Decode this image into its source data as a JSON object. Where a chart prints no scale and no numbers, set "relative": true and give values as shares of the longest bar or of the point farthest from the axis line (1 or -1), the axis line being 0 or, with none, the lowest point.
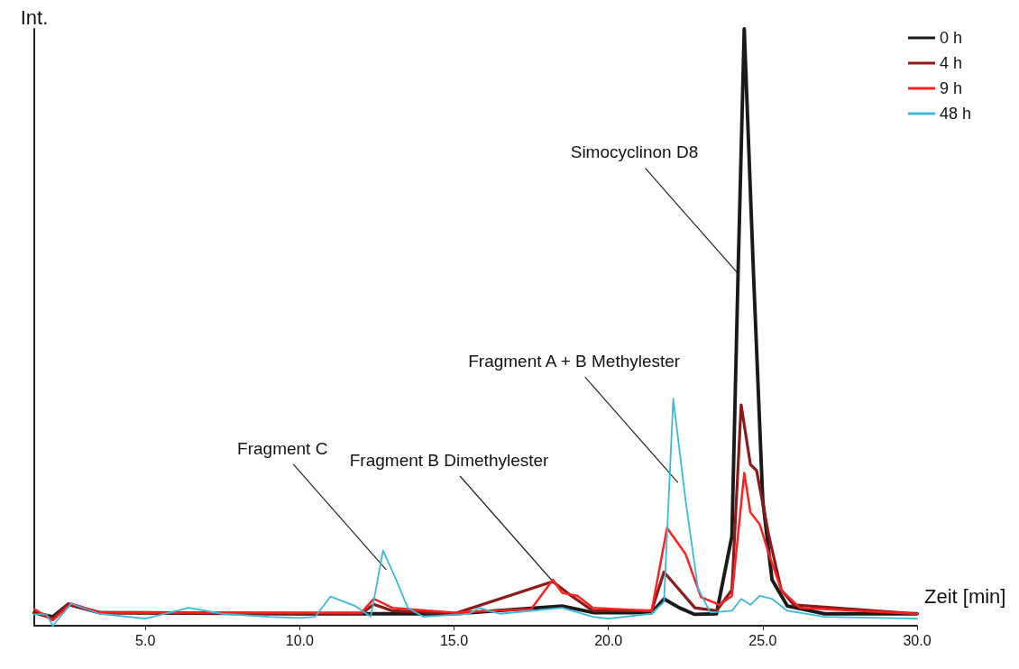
{
  "chart_data": {
    "type": "line",
    "relative": true,
    "xlabel": "Zeit [min]",
    "ylabel": "Int.",
    "xlim": [
      1.4,
      30
    ],
    "xticks": [
      {
        "value": 5,
        "label": "5.0"
      },
      {
        "value": 10,
        "label": "10.0"
      },
      {
        "value": 15,
        "label": "15.0"
      },
      {
        "value": 20,
        "label": "20.0"
      },
      {
        "value": 25,
        "label": "25.0"
      },
      {
        "value": 30,
        "label": "30.0"
      }
    ],
    "legend": "top right",
    "grid": false,
    "marker": "none",
    "line_style": "solid",
    "series": [
      {
        "name": "0 h",
        "color": "#1a1a1a",
        "x": [
          1.4,
          2.0,
          2.5,
          3.5,
          10,
          15,
          18.5,
          19.5,
          21.4,
          21.8,
          22.3,
          22.8,
          23.5,
          24.0,
          24.2,
          24.4,
          24.7,
          25.0,
          25.3,
          25.8,
          27,
          30
        ],
        "values": [
          0.022,
          0.015,
          0.036,
          0.022,
          0.02,
          0.02,
          0.033,
          0.022,
          0.022,
          0.045,
          0.03,
          0.019,
          0.02,
          0.15,
          0.59,
          1.0,
          0.59,
          0.21,
          0.077,
          0.033,
          0.02,
          0.02
        ]
      },
      {
        "name": "4 h",
        "color": "#8b1a1a",
        "x": [
          1.4,
          2.0,
          2.5,
          3.5,
          10,
          12.0,
          12.4,
          13.0,
          15,
          18.2,
          18.8,
          19.5,
          21.4,
          21.8,
          22.3,
          22.8,
          23.5,
          24.0,
          24.3,
          24.6,
          24.8,
          25.2,
          25.6,
          26.0,
          30
        ],
        "values": [
          0.022,
          0.012,
          0.036,
          0.022,
          0.02,
          0.02,
          0.036,
          0.025,
          0.02,
          0.074,
          0.05,
          0.025,
          0.025,
          0.09,
          0.06,
          0.03,
          0.025,
          0.06,
          0.37,
          0.27,
          0.26,
          0.15,
          0.06,
          0.035,
          0.02
        ]
      },
      {
        "name": "9 h",
        "color": "#ff2020",
        "x": [
          1.4,
          2.0,
          2.6,
          3.5,
          10,
          12.0,
          12.4,
          13.0,
          15,
          17.5,
          18.2,
          18.5,
          19.0,
          19.5,
          21.4,
          21.9,
          22.5,
          23.0,
          23.6,
          24.0,
          24.4,
          24.6,
          24.9,
          25.2,
          25.6,
          26.2,
          30
        ],
        "values": [
          0.028,
          0.009,
          0.037,
          0.022,
          0.022,
          0.022,
          0.045,
          0.03,
          0.022,
          0.028,
          0.077,
          0.055,
          0.05,
          0.03,
          0.025,
          0.164,
          0.12,
          0.048,
          0.035,
          0.05,
          0.256,
          0.19,
          0.17,
          0.12,
          0.06,
          0.03,
          0.02
        ]
      },
      {
        "name": "48 h",
        "color": "#3bb9d8",
        "x": [
          1.4,
          1.8,
          2.0,
          2.6,
          3.5,
          5.0,
          6.4,
          7.5,
          9.0,
          10.0,
          10.5,
          11.0,
          11.8,
          12.3,
          12.7,
          13.1,
          13.5,
          14.0,
          15.5,
          15.8,
          16.5,
          18.5,
          19.5,
          20.0,
          21.4,
          21.8,
          22.1,
          22.5,
          22.9,
          23.3,
          24.0,
          24.3,
          24.6,
          24.9,
          25.3,
          25.8,
          27,
          30
        ],
        "values": [
          0.019,
          0.019,
          0,
          0.037,
          0.02,
          0.012,
          0.03,
          0.02,
          0.015,
          0.013,
          0.015,
          0.049,
          0.033,
          0.015,
          0.126,
          0.08,
          0.03,
          0.015,
          0.02,
          0.03,
          0.02,
          0.03,
          0.015,
          0.012,
          0.02,
          0.04,
          0.38,
          0.21,
          0.063,
          0.022,
          0.025,
          0.045,
          0.035,
          0.05,
          0.045,
          0.025,
          0.015,
          0.012
        ]
      }
    ],
    "annotations": [
      {
        "text": "Fragment C",
        "x": 12.8,
        "y": 0.094
      },
      {
        "text": "Fragment B Dimethylester",
        "x": 18.2,
        "y": 0.074
      },
      {
        "text": "Fragment A + B Methylester",
        "x": 22.25,
        "y": 0.24
      },
      {
        "text": "Simocyclinon D8",
        "x": 24.2,
        "y": 0.59
      }
    ]
  }
}
